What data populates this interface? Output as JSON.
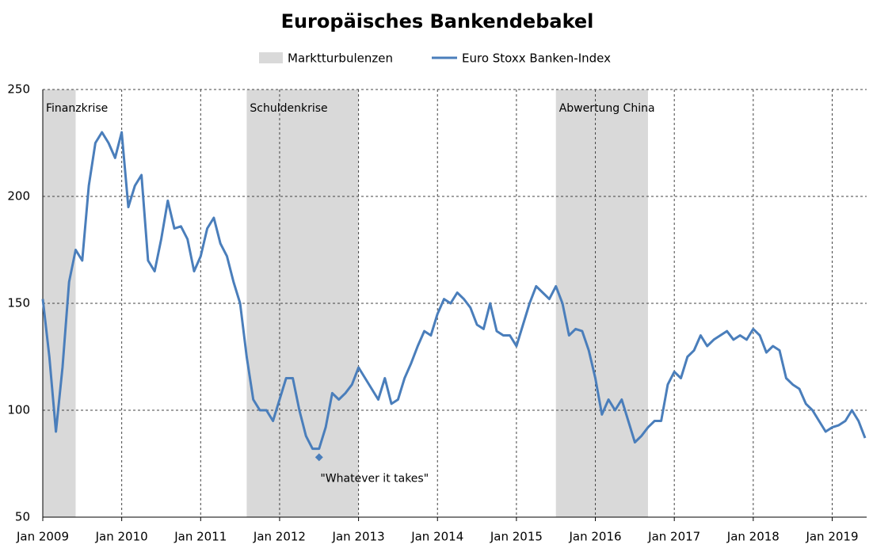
{
  "chart_data": {
    "type": "line",
    "title": "Europäisches Bankendebakel",
    "regions": {
      "name": "Marktturbulenzen",
      "color": "#d9d9d9",
      "spans": [
        {
          "start": "2009-01",
          "end": "2009-06",
          "label": "Finanzkrise"
        },
        {
          "start": "2011-08",
          "end": "2013-01",
          "label": "Schuldenkrise"
        },
        {
          "start": "2015-07",
          "end": "2016-09",
          "label": "Abwertung China"
        }
      ]
    },
    "annotation": {
      "text": "\"Whatever it takes\"",
      "x": "2012-07",
      "y": 78
    },
    "x": [
      "2009-01",
      "2009-02",
      "2009-03",
      "2009-04",
      "2009-05",
      "2009-06",
      "2009-07",
      "2009-08",
      "2009-09",
      "2009-10",
      "2009-11",
      "2009-12",
      "2010-01",
      "2010-02",
      "2010-03",
      "2010-04",
      "2010-05",
      "2010-06",
      "2010-07",
      "2010-08",
      "2010-09",
      "2010-10",
      "2010-11",
      "2010-12",
      "2011-01",
      "2011-02",
      "2011-03",
      "2011-04",
      "2011-05",
      "2011-06",
      "2011-07",
      "2011-08",
      "2011-09",
      "2011-10",
      "2011-11",
      "2011-12",
      "2012-01",
      "2012-02",
      "2012-03",
      "2012-04",
      "2012-05",
      "2012-06",
      "2012-07",
      "2012-08",
      "2012-09",
      "2012-10",
      "2012-11",
      "2012-12",
      "2013-01",
      "2013-02",
      "2013-03",
      "2013-04",
      "2013-05",
      "2013-06",
      "2013-07",
      "2013-08",
      "2013-09",
      "2013-10",
      "2013-11",
      "2013-12",
      "2014-01",
      "2014-02",
      "2014-03",
      "2014-04",
      "2014-05",
      "2014-06",
      "2014-07",
      "2014-08",
      "2014-09",
      "2014-10",
      "2014-11",
      "2014-12",
      "2015-01",
      "2015-02",
      "2015-03",
      "2015-04",
      "2015-05",
      "2015-06",
      "2015-07",
      "2015-08",
      "2015-09",
      "2015-10",
      "2015-11",
      "2015-12",
      "2016-01",
      "2016-02",
      "2016-03",
      "2016-04",
      "2016-05",
      "2016-06",
      "2016-07",
      "2016-08",
      "2016-09",
      "2016-10",
      "2016-11",
      "2016-12",
      "2017-01",
      "2017-02",
      "2017-03",
      "2017-04",
      "2017-05",
      "2017-06",
      "2017-07",
      "2017-08",
      "2017-09",
      "2017-10",
      "2017-11",
      "2017-12",
      "2018-01",
      "2018-02",
      "2018-03",
      "2018-04",
      "2018-05",
      "2018-06",
      "2018-07",
      "2018-08",
      "2018-09",
      "2018-10",
      "2018-11",
      "2018-12",
      "2019-01",
      "2019-02",
      "2019-03",
      "2019-04",
      "2019-05",
      "2019-06"
    ],
    "series": [
      {
        "name": "Euro Stoxx Banken-Index",
        "color": "#4a7ebb",
        "values": [
          152,
          125,
          90,
          120,
          160,
          175,
          170,
          205,
          225,
          230,
          225,
          218,
          230,
          195,
          205,
          210,
          170,
          165,
          180,
          198,
          185,
          186,
          180,
          165,
          172,
          185,
          190,
          178,
          172,
          160,
          150,
          125,
          105,
          100,
          100,
          95,
          105,
          115,
          115,
          100,
          88,
          82,
          82,
          92,
          108,
          105,
          108,
          112,
          120,
          115,
          110,
          105,
          115,
          103,
          105,
          115,
          122,
          130,
          137,
          135,
          145,
          152,
          150,
          155,
          152,
          148,
          140,
          138,
          150,
          137,
          135,
          135,
          130,
          140,
          150,
          158,
          155,
          152,
          158,
          150,
          135,
          138,
          137,
          128,
          115,
          98,
          105,
          100,
          105,
          95,
          85,
          88,
          92,
          95,
          95,
          112,
          118,
          115,
          125,
          128,
          135,
          130,
          133,
          135,
          137,
          133,
          135,
          133,
          138,
          135,
          127,
          130,
          128,
          115,
          112,
          110,
          103,
          100,
          95,
          90,
          92,
          93,
          95,
          100,
          95,
          87
        ]
      }
    ],
    "xlim": [
      "2009-01",
      "2019-06"
    ],
    "xticks": [
      {
        "value": "2009-01",
        "label": "Jan 2009"
      },
      {
        "value": "2010-01",
        "label": "Jan 2010"
      },
      {
        "value": "2011-01",
        "label": "Jan 2011"
      },
      {
        "value": "2012-01",
        "label": "Jan 2012"
      },
      {
        "value": "2013-01",
        "label": "Jan 2013"
      },
      {
        "value": "2014-01",
        "label": "Jan 2014"
      },
      {
        "value": "2015-01",
        "label": "Jan 2015"
      },
      {
        "value": "2016-01",
        "label": "Jan 2016"
      },
      {
        "value": "2017-01",
        "label": "Jan 2017"
      },
      {
        "value": "2018-01",
        "label": "Jan 2018"
      },
      {
        "value": "2019-01",
        "label": "Jan 2019"
      }
    ],
    "ylim": [
      50,
      250
    ],
    "yticks": [
      50,
      100,
      150,
      200,
      250
    ],
    "grid": true
  }
}
